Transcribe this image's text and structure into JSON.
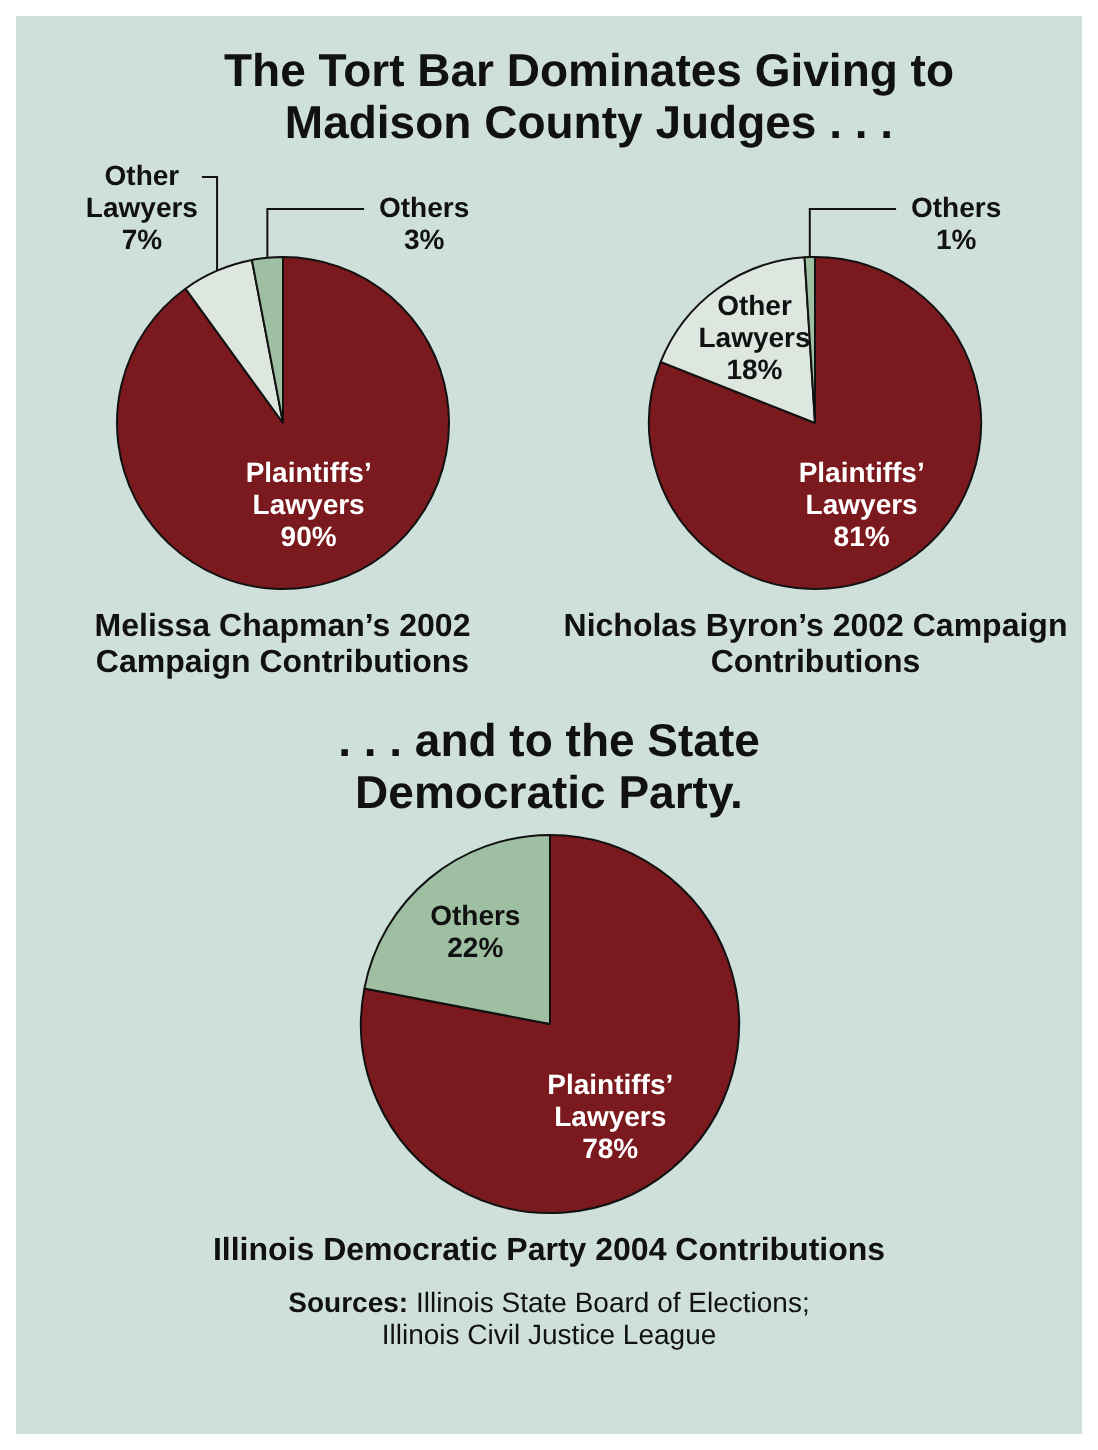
{
  "chart_data": [
    {
      "type": "pie",
      "title": "The Tort Bar Dominates Giving to Madison County Judges . . .",
      "subtitle": "Melissa Chapman’s 2002 Campaign Contributions",
      "categories": [
        "Plaintiffs’ Lawyers",
        "Other Lawyers",
        "Others"
      ],
      "values": [
        90,
        7,
        3
      ],
      "value_labels": [
        "90%",
        "7%",
        "3%"
      ],
      "colors": [
        "#7b1a1e",
        "#dde6df",
        "#9fbfa3"
      ],
      "legend": false
    },
    {
      "type": "pie",
      "subtitle": "Nicholas Byron’s 2002 Campaign Contributions",
      "categories": [
        "Plaintiffs’ Lawyers",
        "Other Lawyers",
        "Others"
      ],
      "values": [
        81,
        18,
        1
      ],
      "value_labels": [
        "81%",
        "18%",
        "1%"
      ],
      "colors": [
        "#7b1a1e",
        "#dde6df",
        "#9fbfa3"
      ],
      "legend": false
    },
    {
      "type": "pie",
      "title": ". . . and to the State Democratic Party.",
      "subtitle": "Illinois Democratic Party 2004 Contributions",
      "categories": [
        "Plaintiffs’ Lawyers",
        "Others"
      ],
      "values": [
        78,
        22
      ],
      "value_labels": [
        "78%",
        "22%"
      ],
      "colors": [
        "#7b1a1e",
        "#9fbfa3"
      ],
      "legend": false,
      "annotations": [
        "Sources: Illinois State Board of Elections; Illinois Civil Justice League"
      ]
    }
  ]
}
